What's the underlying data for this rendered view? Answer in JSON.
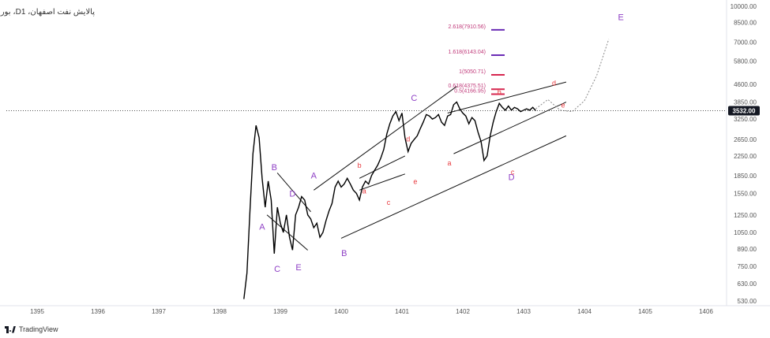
{
  "chart_data": {
    "type": "line",
    "title": "بورس ،Dپالایش نفت اصفهان، 1",
    "scale": "log",
    "ylim": [
      500,
      10000
    ],
    "xlim": [
      1394.6,
      1406.8
    ],
    "y_ticks": [
      10000,
      8500,
      7000,
      5800,
      4600,
      3850,
      3250,
      2650,
      2250,
      1850,
      1550,
      1250,
      1050,
      890,
      750,
      630,
      530
    ],
    "x_ticks": [
      1395,
      1396,
      1397,
      1398,
      1399,
      1400,
      1401,
      1402,
      1403,
      1404,
      1405,
      1406
    ],
    "current_price": "3532.00",
    "series": [
      {
        "name": "price",
        "x": [
          1398.4,
          1398.45,
          1398.5,
          1398.55,
          1398.6,
          1398.65,
          1398.7,
          1398.75,
          1398.8,
          1398.85,
          1398.9,
          1398.95,
          1399.0,
          1399.05,
          1399.1,
          1399.15,
          1399.2,
          1399.25,
          1399.3,
          1399.35,
          1399.4,
          1399.45,
          1399.5,
          1399.55,
          1399.6,
          1399.65,
          1399.7,
          1399.75,
          1399.8,
          1399.85,
          1399.9,
          1399.95,
          1400.0,
          1400.05,
          1400.1,
          1400.15,
          1400.2,
          1400.25,
          1400.3,
          1400.35,
          1400.4,
          1400.45,
          1400.5,
          1400.55,
          1400.6,
          1400.65,
          1400.7,
          1400.75,
          1400.8,
          1400.85,
          1400.9,
          1400.95,
          1401.0,
          1401.05,
          1401.1,
          1401.15,
          1401.2,
          1401.25,
          1401.3,
          1401.35,
          1401.4,
          1401.45,
          1401.5,
          1401.55,
          1401.6,
          1401.65,
          1401.7,
          1401.75,
          1401.8,
          1401.85,
          1401.9,
          1401.95,
          1402.0,
          1402.05,
          1402.1,
          1402.15,
          1402.2,
          1402.25,
          1402.3,
          1402.35,
          1402.4,
          1402.45,
          1402.5,
          1402.55,
          1402.6,
          1402.65,
          1402.7,
          1402.75,
          1402.8,
          1402.85,
          1402.9,
          1402.95,
          1403.0,
          1403.05,
          1403.1,
          1403.15,
          1403.2
        ],
        "values": [
          540,
          700,
          1300,
          2300,
          3050,
          2700,
          1800,
          1350,
          1750,
          1450,
          850,
          1350,
          1150,
          1050,
          1250,
          1000,
          880,
          1250,
          1350,
          1500,
          1450,
          1250,
          1200,
          1100,
          1150,
          1000,
          1050,
          1180,
          1300,
          1400,
          1650,
          1750,
          1650,
          1700,
          1800,
          1700,
          1600,
          1550,
          1450,
          1650,
          1750,
          1700,
          1850,
          1950,
          2050,
          2200,
          2400,
          2800,
          3100,
          3350,
          3500,
          3200,
          3450,
          2700,
          2350,
          2550,
          2650,
          2750,
          2950,
          3150,
          3400,
          3350,
          3250,
          3300,
          3400,
          3150,
          3050,
          3350,
          3400,
          3750,
          3850,
          3600,
          3450,
          3350,
          3100,
          3300,
          3200,
          2850,
          2600,
          2150,
          2250,
          2750,
          3150,
          3500,
          3800,
          3650,
          3550,
          3700,
          3550,
          3650,
          3600,
          3500,
          3550,
          3600,
          3550,
          3650,
          3532
        ]
      }
    ],
    "projection": {
      "name": "projected wave E",
      "x": [
        1403.2,
        1403.4,
        1403.6,
        1403.8,
        1404.0,
        1404.2,
        1404.4
      ],
      "values": [
        3600,
        3950,
        3550,
        3500,
        3900,
        5000,
        7200
      ]
    },
    "fib_levels": [
      {
        "label": "2.618(7910.56)",
        "value": 7910.56
      },
      {
        "label": "1.618(6143.04)",
        "value": 6143.04
      },
      {
        "label": "1(5050.71)",
        "value": 5050.71
      },
      {
        "label": "0.618(4375.51)",
        "value": 4375.51
      },
      {
        "label": "0.5(4166.95)",
        "value": 4166.95
      }
    ],
    "wave_labels": [
      {
        "text": "B",
        "x": 1398.9,
        "y": 1950,
        "color": "purple"
      },
      {
        "text": "A",
        "x": 1398.7,
        "y": 1080,
        "color": "purple"
      },
      {
        "text": "D",
        "x": 1399.2,
        "y": 1500,
        "color": "purple"
      },
      {
        "text": "C",
        "x": 1398.95,
        "y": 710,
        "color": "purple"
      },
      {
        "text": "E",
        "x": 1399.3,
        "y": 720,
        "color": "purple"
      },
      {
        "text": "A",
        "x": 1399.55,
        "y": 1800,
        "color": "purple"
      },
      {
        "text": "B",
        "x": 1400.05,
        "y": 830,
        "color": "purple"
      },
      {
        "text": "C",
        "x": 1401.2,
        "y": 3900,
        "color": "purple"
      },
      {
        "text": "D",
        "x": 1402.8,
        "y": 1770,
        "color": "purple"
      },
      {
        "text": "E",
        "x": 1404.6,
        "y": 8700,
        "color": "purple"
      },
      {
        "text": "b",
        "x": 1400.3,
        "y": 2000,
        "color": "red"
      },
      {
        "text": "a",
        "x": 1400.38,
        "y": 1550,
        "color": "red"
      },
      {
        "text": "c",
        "x": 1400.78,
        "y": 1380,
        "color": "red"
      },
      {
        "text": "d",
        "x": 1401.1,
        "y": 2600,
        "color": "red"
      },
      {
        "text": "e",
        "x": 1401.22,
        "y": 1700,
        "color": "red"
      },
      {
        "text": "a",
        "x": 1401.78,
        "y": 2050,
        "color": "red"
      },
      {
        "text": "b",
        "x": 1402.6,
        "y": 4150,
        "color": "red"
      },
      {
        "text": "c",
        "x": 1402.82,
        "y": 1870,
        "color": "red"
      },
      {
        "text": "d",
        "x": 1403.5,
        "y": 4550,
        "color": "red"
      },
      {
        "text": "e",
        "x": 1403.65,
        "y": 3650,
        "color": "red"
      }
    ],
    "trendlines": [
      {
        "x1": 1398.95,
        "y1": 1900,
        "x2": 1399.5,
        "y2": 1290
      },
      {
        "x1": 1398.78,
        "y1": 1250,
        "x2": 1399.45,
        "y2": 880
      },
      {
        "x1": 1399.55,
        "y1": 1600,
        "x2": 1401.9,
        "y2": 4500
      },
      {
        "x1": 1400.0,
        "y1": 990,
        "x2": 1403.7,
        "y2": 2750
      },
      {
        "x1": 1400.3,
        "y1": 1800,
        "x2": 1401.05,
        "y2": 2250
      },
      {
        "x1": 1400.3,
        "y1": 1600,
        "x2": 1401.05,
        "y2": 1880
      },
      {
        "x1": 1401.75,
        "y1": 3450,
        "x2": 1403.7,
        "y2": 4700
      },
      {
        "x1": 1401.85,
        "y1": 2300,
        "x2": 1403.7,
        "y2": 3850
      }
    ]
  },
  "footer": {
    "brand": "TradingView"
  }
}
